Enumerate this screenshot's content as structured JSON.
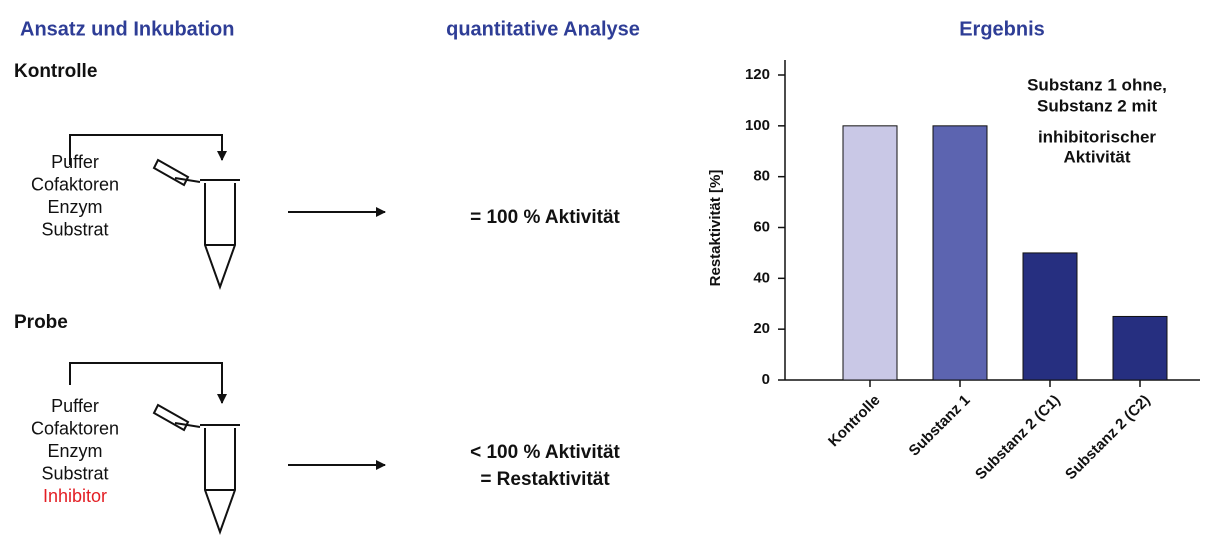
{
  "header": {
    "left": "Ansatz und Inkubation",
    "middle": "quantitative Analyse",
    "right": "Ergebnis"
  },
  "control": {
    "title": "Kontrolle",
    "ingredients": [
      "Puffer",
      "Cofaktoren",
      "Enzym",
      "Substrat"
    ],
    "result": [
      "= 100 % Aktivität"
    ]
  },
  "sample": {
    "title": "Probe",
    "ingredients": [
      "Puffer",
      "Cofaktoren",
      "Enzym",
      "Substrat"
    ],
    "inhibitor": "Inhibitor",
    "result": [
      "< 100 % Aktivität",
      "= Restaktivität"
    ]
  },
  "chart_data": {
    "type": "bar",
    "ylabel": "Restaktivität [%]",
    "categories": [
      "Kontrolle",
      "Substanz 1",
      "Substanz 2 (C1)",
      "Substanz 2 (C2)"
    ],
    "values": [
      100,
      100,
      50,
      25
    ],
    "colors": [
      "#c9c8e6",
      "#5c64b0",
      "#262f80",
      "#262f80"
    ],
    "annotation": [
      "Substanz 1 ohne,",
      "Substanz 2 mit",
      "inhibitorischer",
      "Aktivität"
    ],
    "ylim": [
      0,
      120
    ],
    "yticks": [
      0,
      20,
      40,
      60,
      80,
      100,
      120
    ],
    "grid": false
  }
}
